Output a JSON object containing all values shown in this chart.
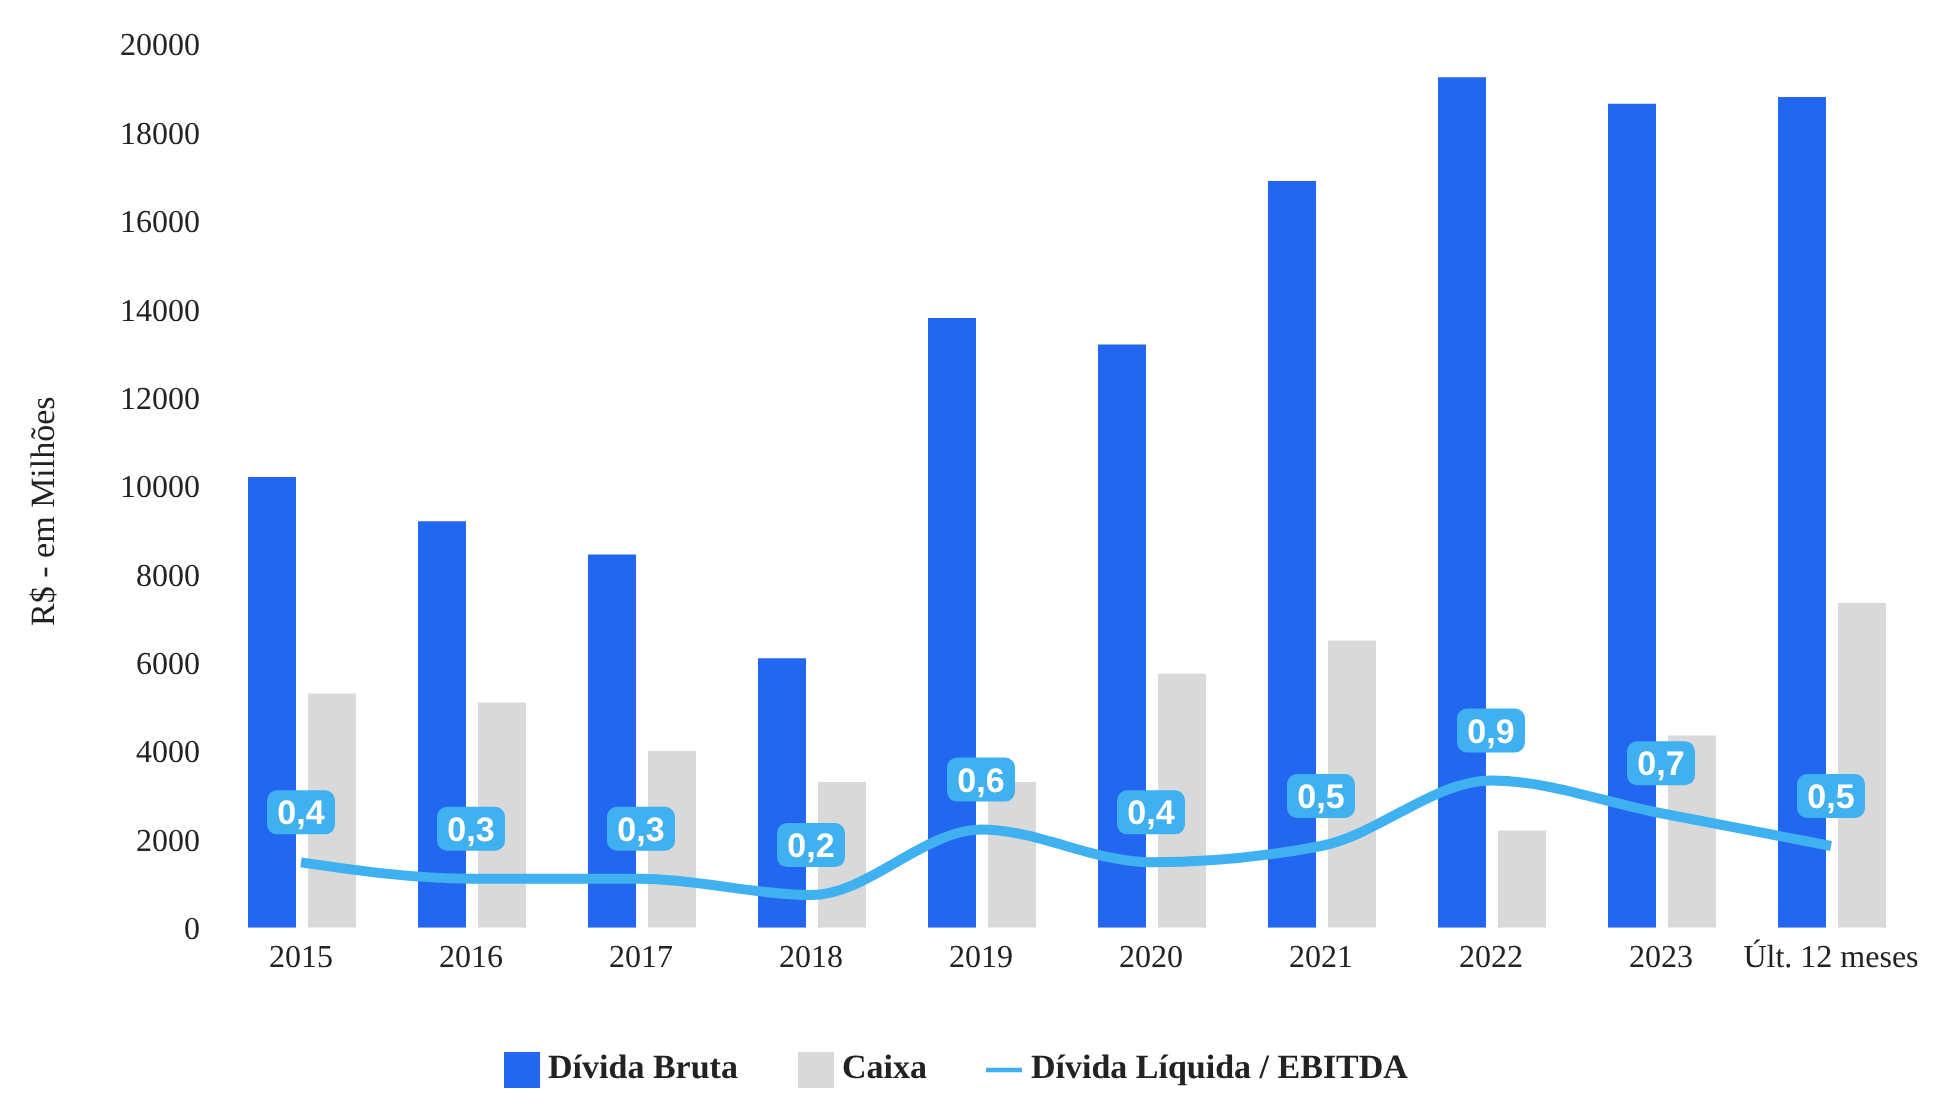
{
  "chart_data": {
    "type": "bar",
    "ylabel": "R$ - em Milhões",
    "categories": [
      "2015",
      "2016",
      "2017",
      "2018",
      "2019",
      "2020",
      "2021",
      "2022",
      "2023",
      "Últ. 12 meses"
    ],
    "series": [
      {
        "name": "Dívida Bruta",
        "color": "#2366f0",
        "values": [
          10200,
          9200,
          8450,
          6100,
          13800,
          13200,
          16900,
          19250,
          18650,
          18800
        ]
      },
      {
        "name": "Caixa",
        "color": "#d9d9d9",
        "values": [
          5300,
          5100,
          4000,
          3300,
          3300,
          5750,
          6500,
          2200,
          4350,
          7350
        ]
      },
      {
        "name": "Dívida Líquida / EBITDA",
        "type": "line",
        "axis": "y2",
        "color": "#3fb0f0",
        "values": [
          0.4,
          0.3,
          0.3,
          0.2,
          0.6,
          0.4,
          0.5,
          0.9,
          0.7,
          0.5
        ],
        "value_labels": [
          "0,4",
          "0,3",
          "0,3",
          "0,2",
          "0,6",
          "0,4",
          "0,5",
          "0,9",
          "0,7",
          "0,5"
        ]
      }
    ],
    "ylim": [
      0,
      20000
    ],
    "yticks": [
      0,
      2000,
      4000,
      6000,
      8000,
      10000,
      12000,
      14000,
      16000,
      18000,
      20000
    ],
    "tick_labels": "xy",
    "grid": false,
    "legend": "bottom",
    "marker": "none"
  }
}
